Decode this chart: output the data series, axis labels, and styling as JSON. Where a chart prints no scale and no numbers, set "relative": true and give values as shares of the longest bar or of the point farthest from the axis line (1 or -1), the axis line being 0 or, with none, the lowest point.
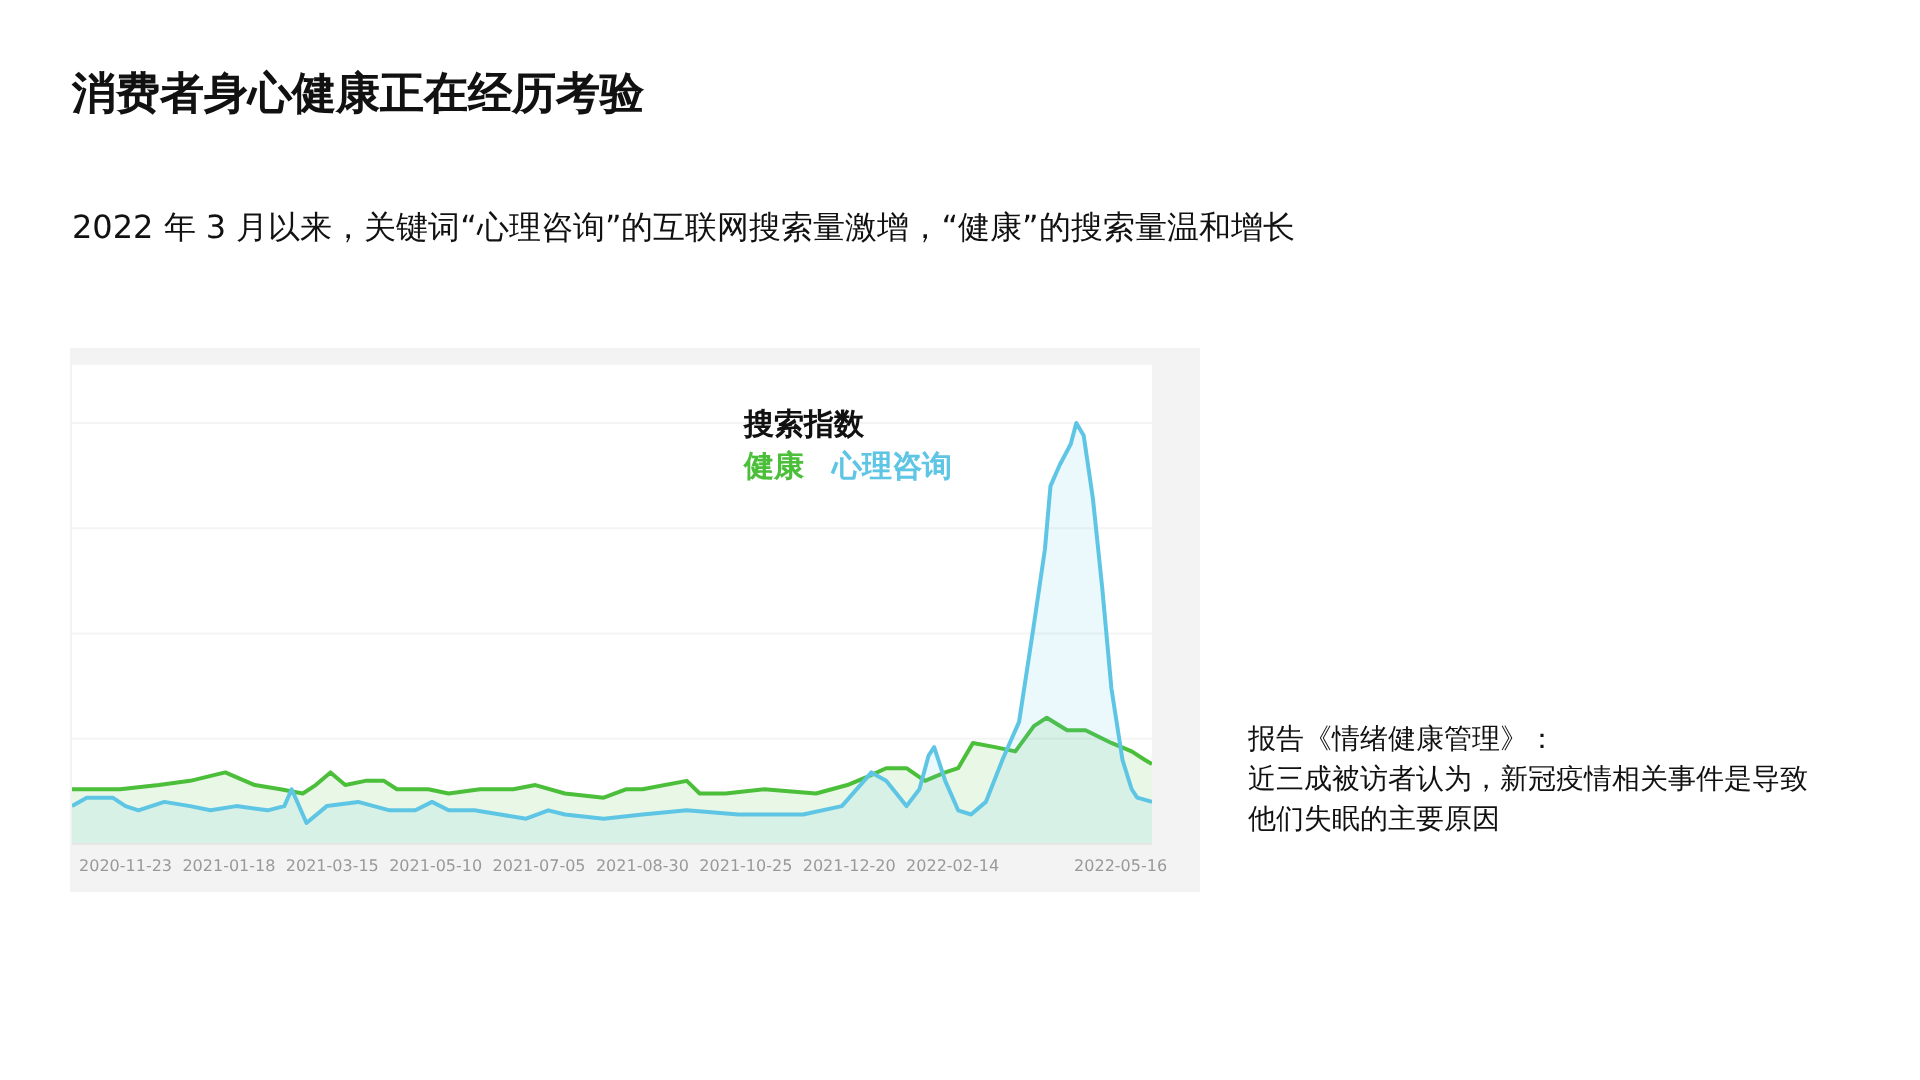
{
  "chart_data": {
    "type": "area",
    "title": "消费者身心健康正在经历考验",
    "subtitle": "2022 年 3 月以来，关键词“心理咨询”的互联网搜索量激增，“健康”的搜索量温和增长",
    "legend_title": "搜索指数",
    "legend": "top right",
    "relative": true,
    "grid": "y",
    "annotations": [
      "报告《情绪健康管理》：",
      "近三成被访者认为，新冠疫情相关事件是导致他们失眠的主要原因"
    ],
    "xlim": [
      "2020-10-25",
      "2022-06-02"
    ],
    "xticks": [
      "2020-11-23",
      "2021-01-18",
      "2021-03-15",
      "2021-05-10",
      "2021-07-05",
      "2021-08-30",
      "2021-10-25",
      "2021-12-20",
      "2022-02-14",
      "2022-05-16"
    ],
    "series": [
      {
        "name": "健康",
        "color": "#4cbf3a",
        "x": [
          "2020-10-25",
          "2020-11-09",
          "2020-11-20",
          "2020-12-11",
          "2020-12-28",
          "2021-01-16",
          "2021-02-01",
          "2021-02-15",
          "2021-02-27",
          "2021-03-06",
          "2021-03-14",
          "2021-03-22",
          "2021-04-02",
          "2021-04-12",
          "2021-04-19",
          "2021-05-06",
          "2021-05-17",
          "2021-06-03",
          "2021-06-21",
          "2021-07-03",
          "2021-07-19",
          "2021-08-09",
          "2021-08-21",
          "2021-08-30",
          "2021-09-23",
          "2021-09-30",
          "2021-10-14",
          "2021-11-04",
          "2021-12-02",
          "2021-12-19",
          "2021-12-30",
          "2022-01-09",
          "2022-01-20",
          "2022-01-30",
          "2022-02-10",
          "2022-02-17",
          "2022-02-25",
          "2022-03-09",
          "2022-03-20",
          "2022-03-30",
          "2022-04-06",
          "2022-04-17",
          "2022-04-27",
          "2022-05-11",
          "2022-05-22",
          "2022-05-29",
          "2022-06-02"
        ],
        "values": [
          0.13,
          0.13,
          0.13,
          0.14,
          0.15,
          0.17,
          0.14,
          0.13,
          0.12,
          0.14,
          0.17,
          0.14,
          0.15,
          0.15,
          0.13,
          0.13,
          0.12,
          0.13,
          0.13,
          0.14,
          0.12,
          0.11,
          0.13,
          0.13,
          0.15,
          0.12,
          0.12,
          0.13,
          0.12,
          0.14,
          0.16,
          0.18,
          0.18,
          0.15,
          0.17,
          0.18,
          0.24,
          0.23,
          0.22,
          0.28,
          0.3,
          0.27,
          0.27,
          0.24,
          0.22,
          0.2,
          0.19
        ]
      },
      {
        "name": "心理咨询",
        "color": "#5ec6e4",
        "x": [
          "2020-10-25",
          "2020-11-02",
          "2020-11-16",
          "2020-11-23",
          "2020-11-30",
          "2020-12-14",
          "2020-12-28",
          "2021-01-08",
          "2021-01-22",
          "2021-02-08",
          "2021-02-17",
          "2021-02-21",
          "2021-02-26",
          "2021-03-01",
          "2021-03-12",
          "2021-03-29",
          "2021-04-15",
          "2021-04-29",
          "2021-05-08",
          "2021-05-17",
          "2021-05-31",
          "2021-06-14",
          "2021-06-28",
          "2021-07-10",
          "2021-07-19",
          "2021-08-09",
          "2021-08-30",
          "2021-09-23",
          "2021-10-21",
          "2021-10-28",
          "2021-11-25",
          "2021-12-16",
          "2021-12-28",
          "2022-01-01",
          "2022-01-09",
          "2022-01-20",
          "2022-01-27",
          "2022-02-01",
          "2022-02-04",
          "2022-02-10",
          "2022-02-17",
          "2022-02-24",
          "2022-03-04",
          "2022-03-13",
          "2022-03-22",
          "2022-03-30",
          "2022-04-05",
          "2022-04-08",
          "2022-04-13",
          "2022-04-19",
          "2022-04-22",
          "2022-04-26",
          "2022-05-01",
          "2022-05-06",
          "2022-05-11",
          "2022-05-17",
          "2022-05-22",
          "2022-05-25",
          "2022-06-02"
        ],
        "values": [
          0.09,
          0.11,
          0.11,
          0.09,
          0.08,
          0.1,
          0.09,
          0.08,
          0.09,
          0.08,
          0.09,
          0.13,
          0.08,
          0.05,
          0.09,
          0.1,
          0.08,
          0.08,
          0.1,
          0.08,
          0.08,
          0.07,
          0.06,
          0.08,
          0.07,
          0.06,
          0.07,
          0.08,
          0.07,
          0.07,
          0.07,
          0.09,
          0.15,
          0.17,
          0.15,
          0.09,
          0.13,
          0.21,
          0.23,
          0.15,
          0.08,
          0.07,
          0.1,
          0.2,
          0.29,
          0.52,
          0.7,
          0.85,
          0.9,
          0.95,
          1,
          0.97,
          0.82,
          0.61,
          0.37,
          0.2,
          0.13,
          0.11,
          0.1
        ]
      }
    ]
  }
}
